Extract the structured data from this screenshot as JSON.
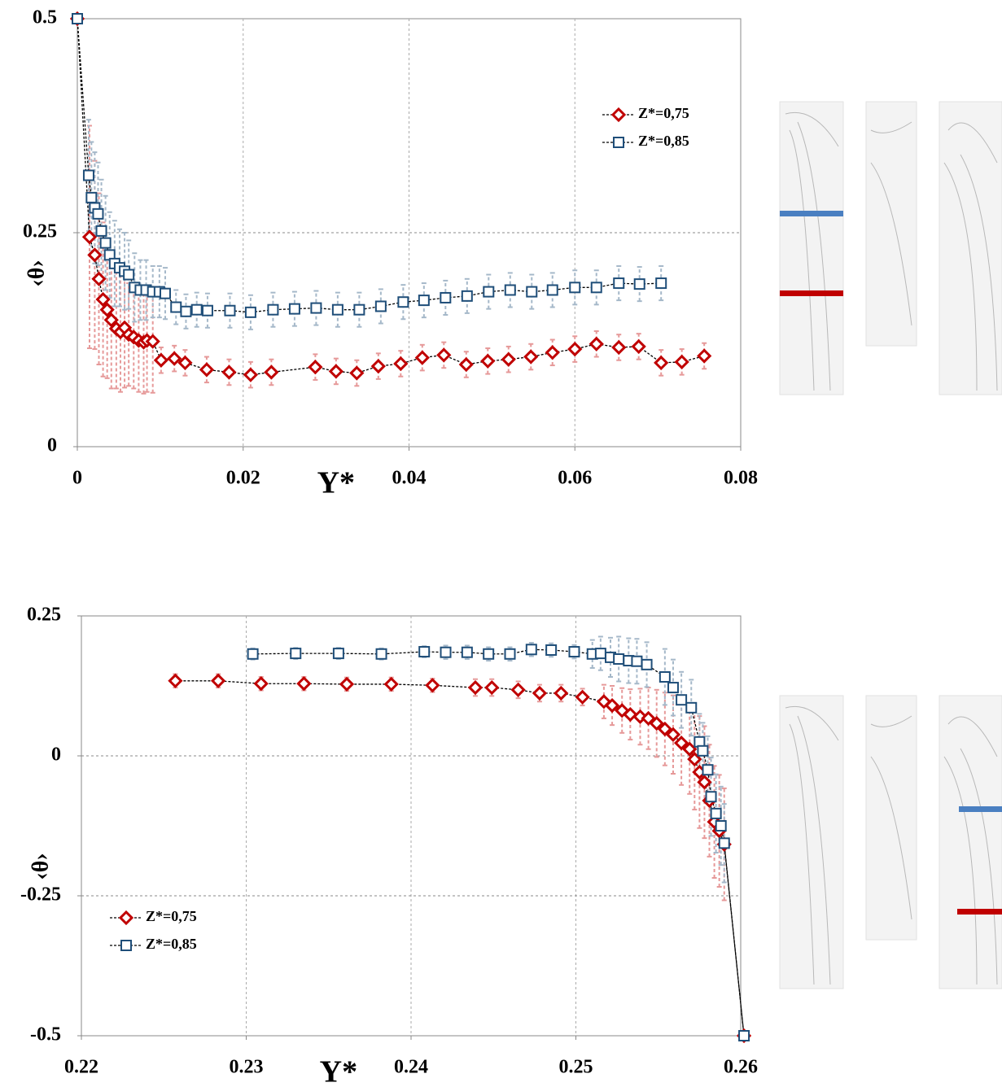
{
  "chart_data": [
    {
      "type": "line",
      "x_label": "Y*",
      "y_label": "‹θ›",
      "xlim": [
        0,
        0.08
      ],
      "ylim": [
        0,
        0.5
      ],
      "xticks": [
        0,
        0.02,
        0.04,
        0.06,
        0.08
      ],
      "yticks": [
        0,
        0.25,
        0.5
      ],
      "grid": true,
      "legend": "upper right",
      "series": [
        {
          "name": "Z*=0,75",
          "color": "#c00000",
          "marker": "diamond",
          "x": [
            0,
            0.00147,
            0.0021,
            0.0026,
            0.0031,
            0.0036,
            0.0041,
            0.0047,
            0.0052,
            0.0057,
            0.0062,
            0.0068,
            0.0074,
            0.008,
            0.0084,
            0.0091,
            0.0101,
            0.0117,
            0.013,
            0.0156,
            0.0183,
            0.0209,
            0.0234,
            0.0287,
            0.0312,
            0.0337,
            0.0363,
            0.039,
            0.0416,
            0.0442,
            0.0469,
            0.0495,
            0.052,
            0.0547,
            0.0573,
            0.06,
            0.0626,
            0.0653,
            0.0677,
            0.0704,
            0.0729,
            0.0756
          ],
          "values": [
            0.5,
            0.245,
            0.224,
            0.196,
            0.172,
            0.16,
            0.148,
            0.138,
            0.134,
            0.139,
            0.131,
            0.128,
            0.124,
            0.122,
            0.124,
            0.123,
            0.101,
            0.103,
            0.098,
            0.09,
            0.087,
            0.084,
            0.087,
            0.093,
            0.088,
            0.086,
            0.094,
            0.097,
            0.104,
            0.107,
            0.096,
            0.1,
            0.102,
            0.105,
            0.11,
            0.114,
            0.12,
            0.116,
            0.117,
            0.098,
            0.099,
            0.106
          ],
          "errors": [
            0,
            0.13,
            0.11,
            0.1,
            0.09,
            0.08,
            0.08,
            0.07,
            0.07,
            0.07,
            0.06,
            0.06,
            0.06,
            0.06,
            0.06,
            0.06,
            0.015,
            0.015,
            0.015,
            0.015,
            0.015,
            0.015,
            0.015,
            0.015,
            0.015,
            0.015,
            0.015,
            0.015,
            0.015,
            0.015,
            0.015,
            0.015,
            0.015,
            0.015,
            0.015,
            0.015,
            0.015,
            0.015,
            0.015,
            0.015,
            0.015,
            0.015
          ]
        },
        {
          "name": "Z*=0,85",
          "color": "#1f4e79",
          "marker": "square",
          "x": [
            0,
            0.00137,
            0.0017,
            0.0021,
            0.0025,
            0.0029,
            0.0034,
            0.0039,
            0.0045,
            0.0051,
            0.0057,
            0.0062,
            0.0069,
            0.0076,
            0.0083,
            0.0091,
            0.0099,
            0.0106,
            0.0119,
            0.0131,
            0.0144,
            0.0157,
            0.0184,
            0.0209,
            0.0236,
            0.0262,
            0.0288,
            0.0314,
            0.034,
            0.0366,
            0.0393,
            0.0418,
            0.0444,
            0.047,
            0.0496,
            0.0522,
            0.0548,
            0.0573,
            0.06,
            0.0626,
            0.0653,
            0.0678,
            0.0704
          ],
          "values": [
            0.5,
            0.317,
            0.291,
            0.279,
            0.272,
            0.252,
            0.238,
            0.224,
            0.214,
            0.209,
            0.205,
            0.201,
            0.186,
            0.183,
            0.183,
            0.181,
            0.181,
            0.179,
            0.163,
            0.158,
            0.16,
            0.159,
            0.159,
            0.157,
            0.16,
            0.161,
            0.162,
            0.16,
            0.16,
            0.164,
            0.169,
            0.171,
            0.174,
            0.176,
            0.181,
            0.183,
            0.181,
            0.183,
            0.186,
            0.186,
            0.191,
            0.19,
            0.191
          ],
          "errors": [
            0,
            0.065,
            0.065,
            0.065,
            0.06,
            0.06,
            0.055,
            0.05,
            0.05,
            0.045,
            0.045,
            0.04,
            0.04,
            0.035,
            0.035,
            0.03,
            0.03,
            0.03,
            0.02,
            0.02,
            0.02,
            0.02,
            0.02,
            0.02,
            0.02,
            0.02,
            0.02,
            0.02,
            0.02,
            0.02,
            0.02,
            0.02,
            0.02,
            0.02,
            0.02,
            0.02,
            0.02,
            0.02,
            0.02,
            0.02,
            0.02,
            0.02,
            0.02
          ]
        }
      ]
    },
    {
      "type": "line",
      "x_label": "Y*",
      "y_label": "‹θ›",
      "xlim": [
        0.22,
        0.26
      ],
      "ylim": [
        -0.5,
        0.25
      ],
      "xticks": [
        0.22,
        0.23,
        0.24,
        0.25,
        0.26
      ],
      "yticks": [
        -0.5,
        -0.25,
        0,
        0.25
      ],
      "grid": true,
      "legend": "lower left",
      "series": [
        {
          "name": "Z*=0,75",
          "color": "#c00000",
          "marker": "diamond",
          "x": [
            0.2257,
            0.2283,
            0.2309,
            0.2335,
            0.2361,
            0.2388,
            0.2413,
            0.2439,
            0.2449,
            0.2465,
            0.2478,
            0.2491,
            0.2504,
            0.2517,
            0.2522,
            0.2528,
            0.2533,
            0.2539,
            0.2544,
            0.2549,
            0.2554,
            0.2559,
            0.2564,
            0.2569,
            0.2572,
            0.2575,
            0.2578,
            0.2581,
            0.2584,
            0.2587,
            0.259,
            0.2602
          ],
          "values": [
            0.134,
            0.134,
            0.129,
            0.129,
            0.128,
            0.128,
            0.126,
            0.122,
            0.122,
            0.118,
            0.112,
            0.112,
            0.105,
            0.097,
            0.09,
            0.081,
            0.074,
            0.07,
            0.067,
            0.058,
            0.048,
            0.038,
            0.023,
            0.012,
            -0.006,
            -0.029,
            -0.047,
            -0.08,
            -0.118,
            -0.134,
            -0.158,
            -0.5
          ],
          "errors": [
            0.012,
            0.012,
            0.012,
            0.012,
            0.012,
            0.012,
            0.012,
            0.015,
            0.015,
            0.015,
            0.015,
            0.015,
            0.015,
            0.03,
            0.035,
            0.04,
            0.045,
            0.05,
            0.055,
            0.06,
            0.065,
            0.07,
            0.075,
            0.08,
            0.09,
            0.1,
            0.1,
            0.1,
            0.1,
            0.1,
            0.1,
            0
          ]
        },
        {
          "name": "Z*=0,85",
          "color": "#1f4e79",
          "marker": "square",
          "x": [
            0.2304,
            0.233,
            0.2356,
            0.2382,
            0.2408,
            0.2421,
            0.2434,
            0.2447,
            0.246,
            0.2473,
            0.2485,
            0.2499,
            0.251,
            0.2515,
            0.2521,
            0.2526,
            0.2532,
            0.2537,
            0.2543,
            0.2554,
            0.2559,
            0.2564,
            0.257,
            0.2575,
            0.2577,
            0.258,
            0.2582,
            0.2585,
            0.2588,
            0.259,
            0.2602
          ],
          "values": [
            0.182,
            0.183,
            0.183,
            0.182,
            0.186,
            0.185,
            0.185,
            0.182,
            0.182,
            0.19,
            0.189,
            0.186,
            0.182,
            0.183,
            0.176,
            0.173,
            0.17,
            0.169,
            0.163,
            0.141,
            0.122,
            0.1,
            0.086,
            0.025,
            0.009,
            -0.025,
            -0.073,
            -0.103,
            -0.125,
            -0.156,
            -0.5
          ],
          "errors": [
            0.01,
            0.01,
            0.01,
            0.01,
            0.01,
            0.012,
            0.012,
            0.012,
            0.012,
            0.012,
            0.012,
            0.012,
            0.025,
            0.03,
            0.035,
            0.04,
            0.04,
            0.04,
            0.04,
            0.05,
            0.05,
            0.05,
            0.05,
            0.05,
            0.05,
            0.06,
            0.07,
            0.07,
            0.07,
            0.07,
            0
          ]
        }
      ]
    }
  ]
}
